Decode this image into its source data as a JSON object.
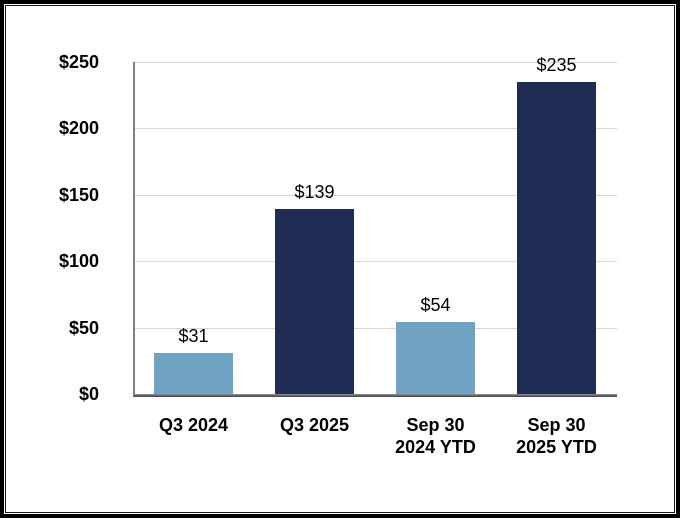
{
  "chart_data": {
    "type": "bar",
    "title": "",
    "xlabel": "",
    "ylabel": "",
    "categories": [
      "Q3 2024",
      "Q3 2025",
      "Sep 30\n2024 YTD",
      "Sep 30\n2025 YTD"
    ],
    "values": [
      31,
      139,
      54,
      235
    ],
    "data_labels": [
      "$31",
      "$139",
      "$54",
      "$235"
    ],
    "bar_colors": [
      "#6FA2C3",
      "#1F2D55",
      "#6FA2C3",
      "#1F2D55"
    ],
    "y_ticks": [
      "$0",
      "$50",
      "$100",
      "$150",
      "$200",
      "$250"
    ],
    "y_tick_values": [
      0,
      50,
      100,
      150,
      200,
      250
    ],
    "ylim": [
      0,
      250
    ],
    "legend": "none",
    "grid": "horizontal",
    "colors": {
      "light_blue": "#6FA2C3",
      "dark_navy": "#1F2D55",
      "gridline": "#D6D6D6",
      "y_axis_line": "#808080",
      "x_axis_line": "#595959",
      "frame_border": "#000000",
      "background": "#FFFFFF",
      "text": "#000000"
    }
  }
}
